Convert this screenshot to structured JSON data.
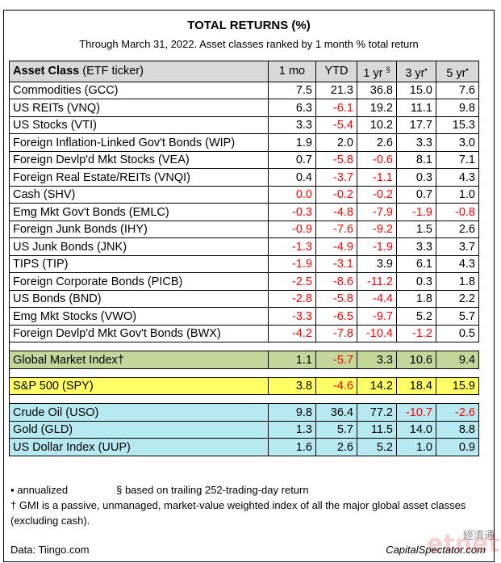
{
  "title": "TOTAL RETURNS (%)",
  "subtitle": "Through March 31, 2022. Asset classes ranked by 1 month % total return",
  "header": {
    "asset_class_bold": "Asset Class",
    "asset_class_rest": " (ETF ticker)",
    "c1": "1 mo",
    "c2": "YTD",
    "c3": "1 yr",
    "c3_mark": "§",
    "c4": "3 yr",
    "c4_mark": "▪",
    "c5": "5 yr",
    "c5_mark": "▪"
  },
  "rows": [
    {
      "name": "Commodities (GCC)",
      "v": [
        "7.5",
        "21.3",
        "36.8",
        "15.0",
        "7.6"
      ]
    },
    {
      "name": "US REITs (VNQ)",
      "v": [
        "6.3",
        "-6.1",
        "19.2",
        "11.1",
        "9.8"
      ]
    },
    {
      "name": "US Stocks (VTI)",
      "v": [
        "3.3",
        "-5.4",
        "10.2",
        "17.7",
        "15.3"
      ]
    },
    {
      "name": "Foreign Inflation-Linked Gov't Bonds (WIP)",
      "v": [
        "1.9",
        "2.0",
        "2.6",
        "3.3",
        "3.0"
      ]
    },
    {
      "name": "Foreign Devlp'd Mkt Stocks (VEA)",
      "v": [
        "0.7",
        "-5.8",
        "-0.6",
        "8.1",
        "7.1"
      ]
    },
    {
      "name": "Foreign Real Estate/REITs (VNQI)",
      "v": [
        "0.4",
        "-3.7",
        "-1.1",
        "0.3",
        "4.3"
      ]
    },
    {
      "name": "Cash (SHV)",
      "v": [
        "0.0",
        "-0.2",
        "-0.2",
        "0.7",
        "1.0"
      ]
    },
    {
      "name": "Emg Mkt Gov't Bonds (EMLC)",
      "v": [
        "-0.3",
        "-4.8",
        "-7.9",
        "-1.9",
        "-0.8"
      ]
    },
    {
      "name": "Foreign Junk Bonds (IHY)",
      "v": [
        "-0.9",
        "-7.6",
        "-9.2",
        "1.5",
        "2.6"
      ]
    },
    {
      "name": "US Junk Bonds (JNK)",
      "v": [
        "-1.3",
        "-4.9",
        "-1.9",
        "3.3",
        "3.7"
      ]
    },
    {
      "name": "TIPS (TIP)",
      "v": [
        "-1.9",
        "-3.1",
        "3.9",
        "6.1",
        "4.3"
      ]
    },
    {
      "name": "Foreign Corporate Bonds (PICB)",
      "v": [
        "-2.5",
        "-8.6",
        "-11.2",
        "0.3",
        "1.8"
      ]
    },
    {
      "name": "US Bonds (BND)",
      "v": [
        "-2.8",
        "-5.8",
        "-4.4",
        "1.8",
        "2.2"
      ]
    },
    {
      "name": "Emg Mkt Stocks (VWO)",
      "v": [
        "-3.3",
        "-6.5",
        "-9.7",
        "5.2",
        "5.7"
      ]
    },
    {
      "name": "Foreign Devlp'd Mkt Gov't Bonds (BWX)",
      "v": [
        "-4.2",
        "-7.8",
        "-10.4",
        "-1.2",
        "0.5"
      ]
    }
  ],
  "gmi": {
    "name": "Global Market Index†",
    "v": [
      "1.1",
      "-5.7",
      "3.3",
      "10.6",
      "9.4"
    ]
  },
  "spy": {
    "name": "S&P 500 (SPY)",
    "v": [
      "3.8",
      "-4.6",
      "14.2",
      "18.4",
      "15.9"
    ]
  },
  "alts": [
    {
      "name": "Crude Oil (USO)",
      "v": [
        "9.8",
        "36.4",
        "77.2",
        "-10.7",
        "-2.6"
      ]
    },
    {
      "name": "Gold (GLD)",
      "v": [
        "1.3",
        "5.7",
        "11.5",
        "14.0",
        "8.8"
      ]
    },
    {
      "name": "US Dollar Index (UUP)",
      "v": [
        "1.6",
        "2.6",
        "5.2",
        "1.0",
        "0.9"
      ]
    }
  ],
  "notes": {
    "annualized": "▪ annualized",
    "trailing": "§ based on trailing 252-trading-day return",
    "gmi_note": "† GMI is a passive, unmanaged, market-value weighted index of all the major global asset classes (excluding cash)."
  },
  "source": "Data: Tiingo.com",
  "brand": "CapitalSpectator.com",
  "watermark": "etnet",
  "watermark_cn": "經濟通",
  "colors": {
    "negative": "#ff0000",
    "gmi_bg": "#c4d79b",
    "spy_bg": "#ffff66",
    "alt_bg": "#b7eaf0",
    "header_bg": "#d9d9d9"
  }
}
